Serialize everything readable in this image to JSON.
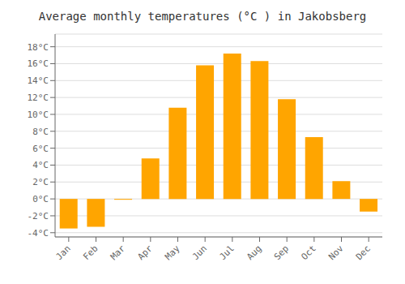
{
  "chart_data": {
    "type": "bar",
    "title": "Average monthly temperatures (°C ) in Jakobsberg",
    "categories": [
      "Jan",
      "Feb",
      "Mar",
      "Apr",
      "May",
      "Jun",
      "Jul",
      "Aug",
      "Sep",
      "Oct",
      "Nov",
      "Dec"
    ],
    "values": [
      -3.5,
      -3.3,
      -0.1,
      4.8,
      10.8,
      15.8,
      17.2,
      16.3,
      11.8,
      7.3,
      2.1,
      -1.5
    ],
    "color": "#FFA500",
    "ylim": [
      -4.5,
      19.5
    ],
    "yticks": [
      {
        "value": -4,
        "label": "-4°C"
      },
      {
        "value": -2,
        "label": "-2°C"
      },
      {
        "value": 0,
        "label": "0°C"
      },
      {
        "value": 2,
        "label": "2°C"
      },
      {
        "value": 4,
        "label": "4°C"
      },
      {
        "value": 6,
        "label": "6°C"
      },
      {
        "value": 8,
        "label": "8°C"
      },
      {
        "value": 10,
        "label": "10°C"
      },
      {
        "value": 12,
        "label": "12°C"
      },
      {
        "value": 14,
        "label": "14°C"
      },
      {
        "value": 16,
        "label": "16°C"
      },
      {
        "value": 18,
        "label": "18°C"
      }
    ],
    "grid": true
  }
}
